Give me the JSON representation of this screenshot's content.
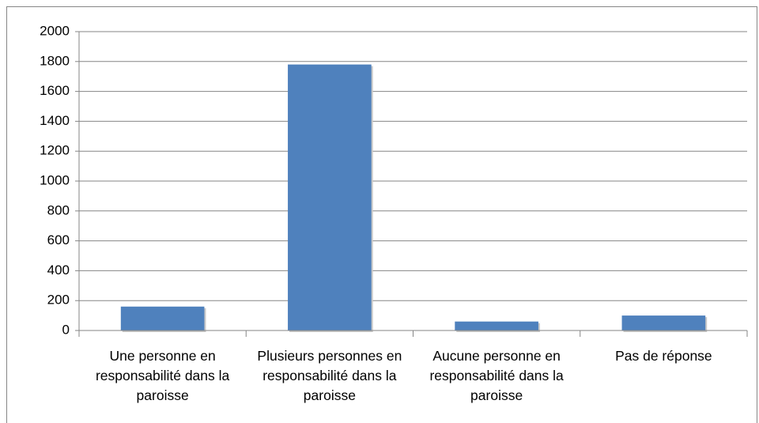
{
  "chart_data": {
    "type": "bar",
    "categories": [
      "Une personne en responsabilité dans la paroisse",
      "Plusieurs personnes en responsabilité dans la paroisse",
      "Aucune personne en responsabilité dans la paroisse",
      "Pas de réponse"
    ],
    "values": [
      160,
      1780,
      60,
      100
    ],
    "color": "#4f81bd",
    "ylim": [
      0,
      2000
    ],
    "yticks": [
      0,
      200,
      400,
      600,
      800,
      1000,
      1200,
      1400,
      1600,
      1800,
      2000
    ],
    "grid": true
  }
}
